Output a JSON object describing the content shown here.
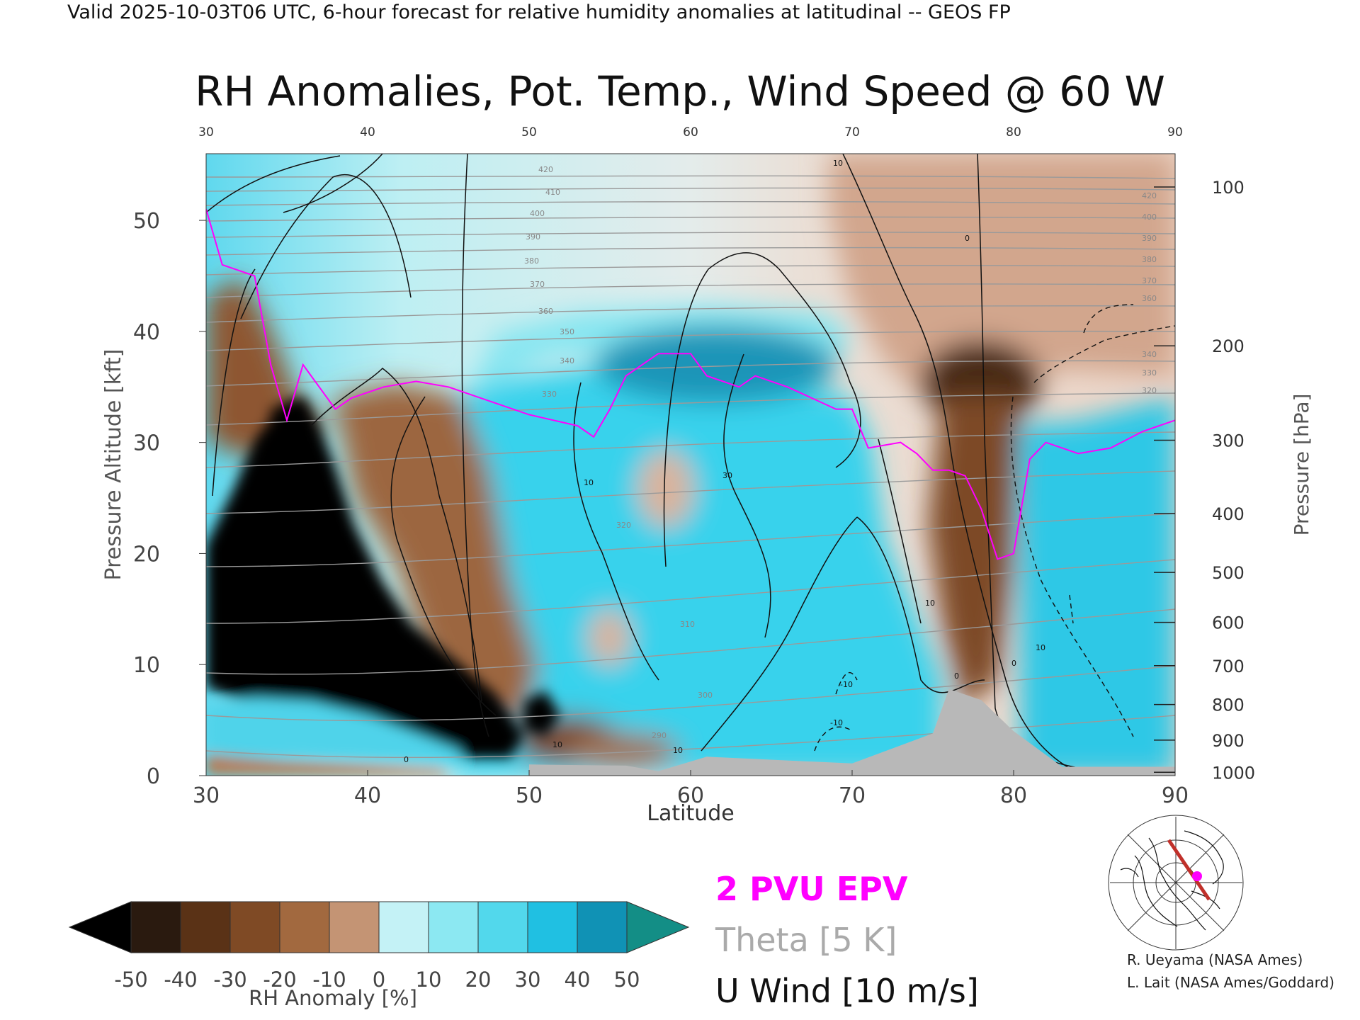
{
  "header": {
    "validity": "Valid 2025-10-03T06 UTC, 6-hour forecast for relative humidity anomalies at latitudinal -- GEOS FP",
    "title": "RH Anomalies, Pot. Temp., Wind Speed @ 60 W"
  },
  "chart_data": {
    "type": "heatmap",
    "title": "RH Anomalies, Pot. Temp., Wind Speed @ 60 W",
    "xlabel": "Latitude",
    "ylabel_left": "Pressure Altitude [kft]",
    "ylabel_right": "Pressure [hPa]",
    "xlim": [
      30,
      90
    ],
    "ylim": [
      0,
      56
    ],
    "x_ticks": [
      "30",
      "40",
      "50",
      "60",
      "70",
      "80",
      "90"
    ],
    "y_ticks_left": [
      "0",
      "10",
      "20",
      "30",
      "40",
      "50"
    ],
    "y_ticks_right": [
      {
        "label": "100",
        "kft": 53.0
      },
      {
        "label": "200",
        "kft": 38.7
      },
      {
        "label": "300",
        "kft": 30.2
      },
      {
        "label": "400",
        "kft": 23.6
      },
      {
        "label": "500",
        "kft": 18.3
      },
      {
        "label": "600",
        "kft": 13.8
      },
      {
        "label": "700",
        "kft": 9.9
      },
      {
        "label": "800",
        "kft": 6.4
      },
      {
        "label": "900",
        "kft": 3.2
      },
      {
        "label": "1000",
        "kft": 0.3
      }
    ],
    "colorbar": {
      "label": "RH Anomaly [%]",
      "ticks": [
        "-50",
        "-40",
        "-30",
        "-20",
        "-10",
        "0",
        "10",
        "20",
        "30",
        "40",
        "50"
      ],
      "colors": [
        "#2a1a0f",
        "#5a3216",
        "#7f4a25",
        "#a2693f",
        "#c49474",
        "#ecd4c6",
        "#c4f2f6",
        "#8ce8f2",
        "#52d8ec",
        "#20c0e2",
        "#1092b5"
      ],
      "under_color": "#000000",
      "over_color": "#138e86"
    },
    "rh_anomaly_features": [
      {
        "kind": "dry",
        "lat": [
          30,
          50
        ],
        "kft": [
          0,
          34
        ],
        "min": -50
      },
      {
        "kind": "dry",
        "lat": [
          75,
          82
        ],
        "kft": [
          0,
          40
        ],
        "min": -40
      },
      {
        "kind": "dry",
        "lat": [
          30,
          38
        ],
        "kft": [
          22,
          52
        ],
        "min": -35
      },
      {
        "kind": "moist",
        "lat": [
          47,
          75
        ],
        "kft": [
          0,
          34
        ],
        "max": 40
      },
      {
        "kind": "moist",
        "lat": [
          82,
          90
        ],
        "kft": [
          0,
          32
        ],
        "max": 40
      },
      {
        "kind": "moist",
        "lat": [
          56,
          61
        ],
        "kft": [
          36,
          40
        ],
        "max": 50
      }
    ],
    "theta_contour_labels": [
      "290",
      "300",
      "310",
      "320",
      "330",
      "340",
      "350",
      "360",
      "370",
      "380",
      "390",
      "400",
      "410",
      "420"
    ],
    "u_wind_contour_labels": [
      "-10",
      "0",
      "10",
      "30"
    ],
    "terrain": [
      [
        50,
        1.0
      ],
      [
        56,
        0.9
      ],
      [
        58,
        0.4
      ],
      [
        61,
        1.7
      ],
      [
        70,
        1.1
      ],
      [
        75,
        3.8
      ],
      [
        76,
        7.8
      ],
      [
        78,
        6.8
      ],
      [
        80,
        4.0
      ],
      [
        83,
        0.8
      ],
      [
        90,
        0.8
      ]
    ],
    "epv_2pvu_line": [
      [
        30,
        51
      ],
      [
        31,
        46
      ],
      [
        33,
        45
      ],
      [
        34,
        37
      ],
      [
        35,
        32
      ],
      [
        36,
        37
      ],
      [
        38,
        33
      ],
      [
        39,
        34
      ],
      [
        41,
        35
      ],
      [
        43,
        35.5
      ],
      [
        45,
        35
      ],
      [
        47,
        34
      ],
      [
        50,
        32.5
      ],
      [
        53,
        31.5
      ],
      [
        54,
        30.5
      ],
      [
        55,
        33
      ],
      [
        56,
        36
      ],
      [
        58,
        38
      ],
      [
        60,
        38
      ],
      [
        61,
        36
      ],
      [
        63,
        35
      ],
      [
        64,
        36
      ],
      [
        66,
        35
      ],
      [
        69,
        33
      ],
      [
        70,
        33
      ],
      [
        71,
        29.5
      ],
      [
        73,
        30
      ],
      [
        74,
        29
      ],
      [
        75,
        27.5
      ],
      [
        76,
        27.5
      ],
      [
        77,
        27
      ],
      [
        78,
        24
      ],
      [
        79,
        19.5
      ],
      [
        80,
        20
      ],
      [
        81,
        28.5
      ],
      [
        82,
        30
      ],
      [
        84,
        29
      ],
      [
        86,
        29.5
      ],
      [
        88,
        31
      ],
      [
        90,
        32
      ]
    ]
  },
  "legend": {
    "pvu": "2 PVU EPV",
    "theta": "Theta [5 K]",
    "u_wind": "U Wind [10 m/s]"
  },
  "colors": {
    "epv_line": "#ff00ff",
    "theta_lines": "#9a9a9a",
    "wind_contours": "#111111",
    "terrain": "#b8b8b8",
    "section_line": "#c0302a",
    "section_marker": "#ff00ff"
  },
  "inset_map": {
    "name": "North polar stereographic locator map with 60 W cross-section line"
  },
  "credits": {
    "line1": "R. Ueyama (NASA Ames)",
    "line2": "L. Lait (NASA Ames/Goddard)"
  }
}
